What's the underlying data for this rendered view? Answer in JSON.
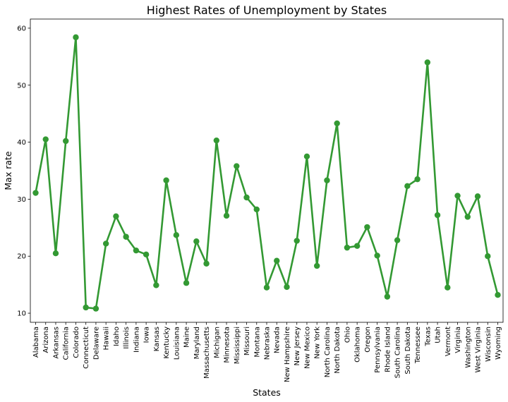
{
  "chart_data": {
    "type": "line",
    "title": "Highest Rates of Unemployment by States",
    "xlabel": "States",
    "ylabel": "Max rate",
    "ylim": [
      8.4,
      61.6
    ],
    "yticks": [
      10,
      20,
      30,
      40,
      50,
      60
    ],
    "grid": false,
    "color": "#339933",
    "categories": [
      "Alabama",
      "Arizona",
      "Arkansas",
      "California",
      "Colorado",
      "Connecticut",
      "Delaware",
      "Hawaii",
      "Idaho",
      "Illinois",
      "Indiana",
      "Iowa",
      "Kansas",
      "Kentucky",
      "Louisiana",
      "Maine",
      "Maryland",
      "Massachusetts",
      "Michigan",
      "Minnesota",
      "Mississippi",
      "Missouri",
      "Montana",
      "Nebraska",
      "Nevada",
      "New Hampshire",
      "New Jersey",
      "New Mexico",
      "New York",
      "North Carolina",
      "North Dakota",
      "Ohio",
      "Oklahoma",
      "Oregon",
      "Pennsylvania",
      "Rhode Island",
      "South Carolina",
      "South Dakota",
      "Tennessee",
      "Texas",
      "Utah",
      "Vermont",
      "Virginia",
      "Washington",
      "West Virginia",
      "Wisconsin",
      "Wyoming"
    ],
    "values": [
      31.1,
      40.5,
      20.5,
      40.2,
      58.4,
      11.0,
      10.8,
      22.2,
      27.0,
      23.4,
      21.0,
      20.3,
      14.9,
      33.3,
      23.7,
      15.3,
      22.6,
      18.7,
      40.3,
      27.1,
      35.8,
      30.3,
      28.2,
      14.5,
      19.2,
      14.6,
      22.7,
      37.5,
      18.3,
      33.3,
      43.3,
      21.5,
      21.8,
      25.1,
      20.1,
      12.9,
      22.8,
      32.3,
      33.5,
      54.0,
      27.2,
      14.5,
      30.6,
      26.9,
      30.5,
      20.0,
      13.2
    ]
  }
}
